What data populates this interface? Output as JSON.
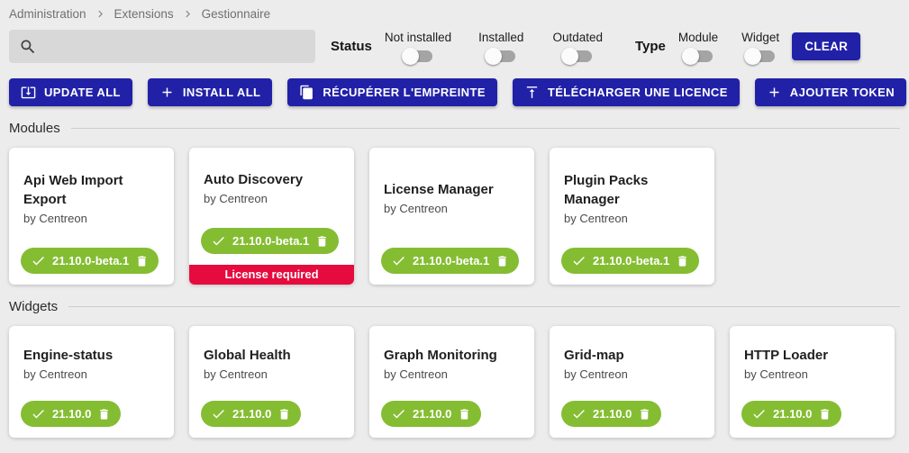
{
  "breadcrumb": {
    "items": [
      {
        "label": "Administration"
      },
      {
        "label": "Extensions"
      },
      {
        "label": "Gestionnaire"
      }
    ]
  },
  "filters": {
    "search_value": "",
    "status_label": "Status",
    "type_label": "Type",
    "status_toggles": [
      {
        "label": "Not installed",
        "on": false
      },
      {
        "label": "Installed",
        "on": false
      },
      {
        "label": "Outdated",
        "on": false
      }
    ],
    "type_toggles": [
      {
        "label": "Module",
        "on": false
      },
      {
        "label": "Widget",
        "on": false
      }
    ],
    "clear_label": "CLEAR"
  },
  "actions": [
    {
      "label": "UPDATE ALL",
      "icon": "system-update-icon"
    },
    {
      "label": "INSTALL ALL",
      "icon": "plus-icon"
    },
    {
      "label": "RÉCUPÉRER L'EMPREINTE",
      "icon": "copy-icon"
    },
    {
      "label": "TÉLÉCHARGER UNE LICENCE",
      "icon": "upload-icon"
    },
    {
      "label": "AJOUTER TOKEN",
      "icon": "plus-icon"
    }
  ],
  "sections": [
    {
      "title": "Modules",
      "cards": [
        {
          "title": "Api Web Import Export",
          "author": "by Centreon",
          "version": "21.10.0-beta.1"
        },
        {
          "title": "Auto Discovery",
          "author": "by Centreon",
          "version": "21.10.0-beta.1",
          "license_warning": "License required"
        },
        {
          "title": "License Manager",
          "author": "by Centreon",
          "version": "21.10.0-beta.1"
        },
        {
          "title": "Plugin Packs Manager",
          "author": "by Centreon",
          "version": "21.10.0-beta.1"
        }
      ]
    },
    {
      "title": "Widgets",
      "cards": [
        {
          "title": "Engine-status",
          "author": "by Centreon",
          "version": "21.10.0"
        },
        {
          "title": "Global Health",
          "author": "by Centreon",
          "version": "21.10.0"
        },
        {
          "title": "Graph Monitoring",
          "author": "by Centreon",
          "version": "21.10.0"
        },
        {
          "title": "Grid-map",
          "author": "by Centreon",
          "version": "21.10.0"
        },
        {
          "title": "HTTP Loader",
          "author": "by Centreon",
          "version": "21.10.0"
        }
      ]
    }
  ],
  "colors": {
    "primary": "#2121a8",
    "success": "#84bd32",
    "danger": "#e60b3e"
  }
}
